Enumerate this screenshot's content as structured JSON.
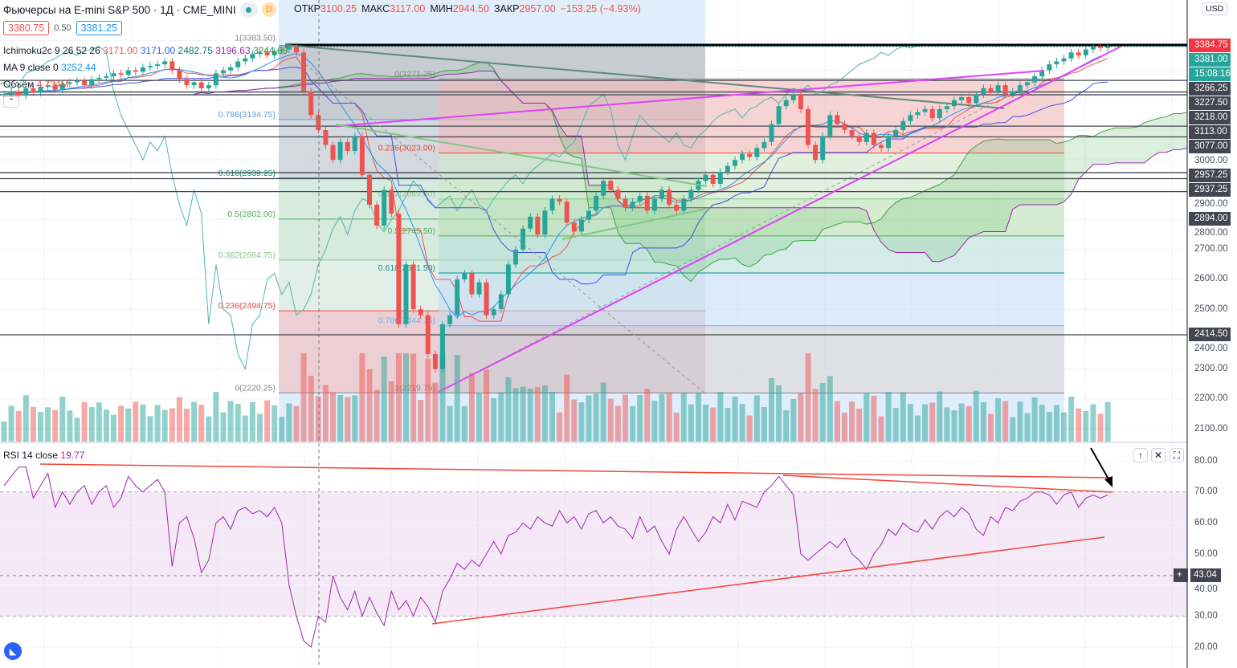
{
  "header": {
    "title": "Фьючерсы на E-mini S&P 500 · 1Д · CME_MINI",
    "badge": "D",
    "ohlc": [
      {
        "k": "ОТКР",
        "v": "3100.25"
      },
      {
        "k": "МАКС",
        "v": "3117.00"
      },
      {
        "k": "МИН",
        "v": "2944.50"
      },
      {
        "k": "ЗАКР",
        "v": "2957.00"
      },
      {
        "k": "",
        "v": "−153.25 (−4.93%)"
      }
    ],
    "bid": "3380.75",
    "spread": "0.50",
    "ask": "3381.25"
  },
  "legends": {
    "ichimoku_name": "Ichimoku2c 9 26 52 26",
    "ichimoku_vals": [
      {
        "v": "3171.00",
        "c": "#ef5350"
      },
      {
        "v": "3171.00",
        "c": "#2962ff"
      },
      {
        "v": "2482.75",
        "c": "#00796b"
      },
      {
        "v": "3196.63",
        "c": "#9c27b0"
      },
      {
        "v": "3244.69",
        "c": "#388e3c"
      }
    ],
    "ma_name": "MA 9 close 0",
    "ma_val": "3252.44",
    "vol_name": "Объём",
    "vol_val": "4.734M",
    "rsi_name": "RSI 14 close",
    "rsi_val": "19.77"
  },
  "price_axis": {
    "currency": "USD",
    "ticks": [
      "2100.00",
      "2200.00",
      "2300.00",
      "2400.00",
      "2500.00",
      "2600.00",
      "2700.00",
      "2800.00",
      "2900.00",
      "3000.00"
    ],
    "labels": [
      {
        "t": "3384.75",
        "p": 3384.75,
        "c": "#f23645"
      },
      {
        "t": "3381.00",
        "p": 3370,
        "c": "#26a69a"
      },
      {
        "t": "15:08:16",
        "p": 3320,
        "c": "#26a69a"
      },
      {
        "t": "3266.25",
        "p": 3266.25,
        "c": "#434651"
      },
      {
        "t": "3227.50",
        "p": 3224,
        "c": "#434651"
      },
      {
        "t": "3218.00",
        "p": 3178,
        "c": "#434651"
      },
      {
        "t": "3113.00",
        "p": 3113,
        "c": "#434651"
      },
      {
        "t": "3077.00",
        "p": 3077,
        "c": "#434651"
      },
      {
        "t": "2957.25",
        "p": 2962,
        "c": "#434651"
      },
      {
        "t": "2937.25",
        "p": 2937.25,
        "c": "#434651"
      },
      {
        "t": "2894.00",
        "p": 2894,
        "c": "#434651"
      },
      {
        "t": "2414.50",
        "p": 2414.5,
        "c": "#434651"
      }
    ]
  },
  "rsi_axis": {
    "ticks": [
      "80.00",
      "70.00",
      "60.00",
      "50.00",
      "40.00",
      "30.00",
      "20.00"
    ],
    "crosshair": "43.04"
  },
  "fib1": {
    "levels": [
      "1(3383.50)",
      "0.786(3134.75)",
      "0.618(2939.25)",
      "0.5(2802.00)",
      "0.382(2664.75)",
      "0.236(2494.75)",
      "0(2220.25)"
    ],
    "prices": [
      3383.5,
      3134.75,
      2939.25,
      2802,
      2664.75,
      2494.75,
      2220.25
    ]
  },
  "fib2": {
    "levels": [
      "0(3271.25)",
      "0.236(3023.00)",
      "0.382(2869.50)",
      "0.5(2745.50)",
      "0.618(2621.50)",
      "0.786(2444.75)",
      "1(2219.75)"
    ],
    "prices": [
      3271.25,
      3023,
      2869.5,
      2745.5,
      2621.5,
      2444.75,
      2219.75
    ]
  },
  "hlines": [
    3384.75,
    3266.25,
    3227.5,
    3218,
    3113,
    3077,
    2957.25,
    2937.25,
    2894,
    2414.5
  ],
  "colors": {
    "up": "#26a69a",
    "down": "#ef5350",
    "rsi": "#9c27b0"
  },
  "chart_data": {
    "type": "candlestick",
    "title": "E-mini S&P 500 futures, 1D",
    "closes": [
      3220,
      3230,
      3215,
      3240,
      3225,
      3245,
      3250,
      3235,
      3255,
      3260,
      3265,
      3250,
      3270,
      3275,
      3280,
      3290,
      3285,
      3300,
      3295,
      3310,
      3315,
      3320,
      3330,
      3300,
      3270,
      3250,
      3260,
      3240,
      3250,
      3290,
      3300,
      3310,
      3330,
      3340,
      3355,
      3360,
      3350,
      3365,
      3370,
      3380,
      3360,
      3230,
      3150,
      3100,
      3050,
      3000,
      3060,
      3030,
      3080,
      2950,
      2850,
      2780,
      2900,
      2820,
      2450,
      2650,
      2500,
      2480,
      2350,
      2300,
      2450,
      2480,
      2600,
      2620,
      2550,
      2590,
      2480,
      2500,
      2550,
      2650,
      2700,
      2770,
      2810,
      2750,
      2830,
      2870,
      2860,
      2790,
      2760,
      2800,
      2830,
      2880,
      2930,
      2900,
      2870,
      2840,
      2860,
      2880,
      2830,
      2870,
      2900,
      2850,
      2830,
      2870,
      2900,
      2930,
      2950,
      2920,
      2960,
      2980,
      3000,
      3020,
      3010,
      3040,
      3060,
      3120,
      3180,
      3200,
      3220,
      3170,
      3050,
      3000,
      3080,
      3150,
      3120,
      3100,
      3080,
      3060,
      3090,
      3050,
      3040,
      3080,
      3100,
      3130,
      3150,
      3160,
      3170,
      3140,
      3170,
      3180,
      3200,
      3210,
      3190,
      3220,
      3240,
      3230,
      3250,
      3220,
      3230,
      3250,
      3260,
      3280,
      3300,
      3320,
      3330,
      3340,
      3360,
      3350,
      3370,
      3380,
      3375,
      3381
    ],
    "rsi": [
      72,
      75,
      78,
      78,
      68,
      72,
      76,
      65,
      70,
      66,
      70,
      72,
      66,
      70,
      72,
      65,
      68,
      75,
      72,
      70,
      72,
      74,
      70,
      46,
      60,
      62,
      55,
      44,
      48,
      60,
      62,
      58,
      64,
      65,
      63,
      64,
      62,
      65,
      60,
      40,
      30,
      22,
      20,
      30,
      28,
      43,
      36,
      32,
      38,
      30,
      36,
      31,
      27,
      38,
      32,
      35,
      30,
      36,
      33,
      28,
      38,
      42,
      47,
      45,
      48,
      46,
      50,
      54,
      50,
      56,
      57,
      60,
      58,
      62,
      60,
      59,
      64,
      60,
      62,
      58,
      63,
      64,
      60,
      62,
      59,
      58,
      55,
      62,
      57,
      59,
      54,
      50,
      58,
      62,
      58,
      54,
      57,
      62,
      60,
      66,
      61,
      67,
      66,
      65,
      70,
      72,
      75,
      72,
      69,
      50,
      48,
      50,
      52,
      54,
      52,
      55,
      50,
      48,
      45,
      50,
      53,
      58,
      56,
      60,
      58,
      57,
      61,
      58,
      62,
      64,
      62,
      65,
      63,
      58,
      56,
      62,
      60,
      65,
      64,
      67,
      68,
      70,
      70,
      69,
      66,
      69,
      70,
      65,
      68,
      69,
      68,
      69
    ],
    "price_range": [
      2050,
      3420
    ],
    "rsi_range": [
      15,
      85
    ],
    "rsi_bands": [
      30,
      70
    ]
  }
}
